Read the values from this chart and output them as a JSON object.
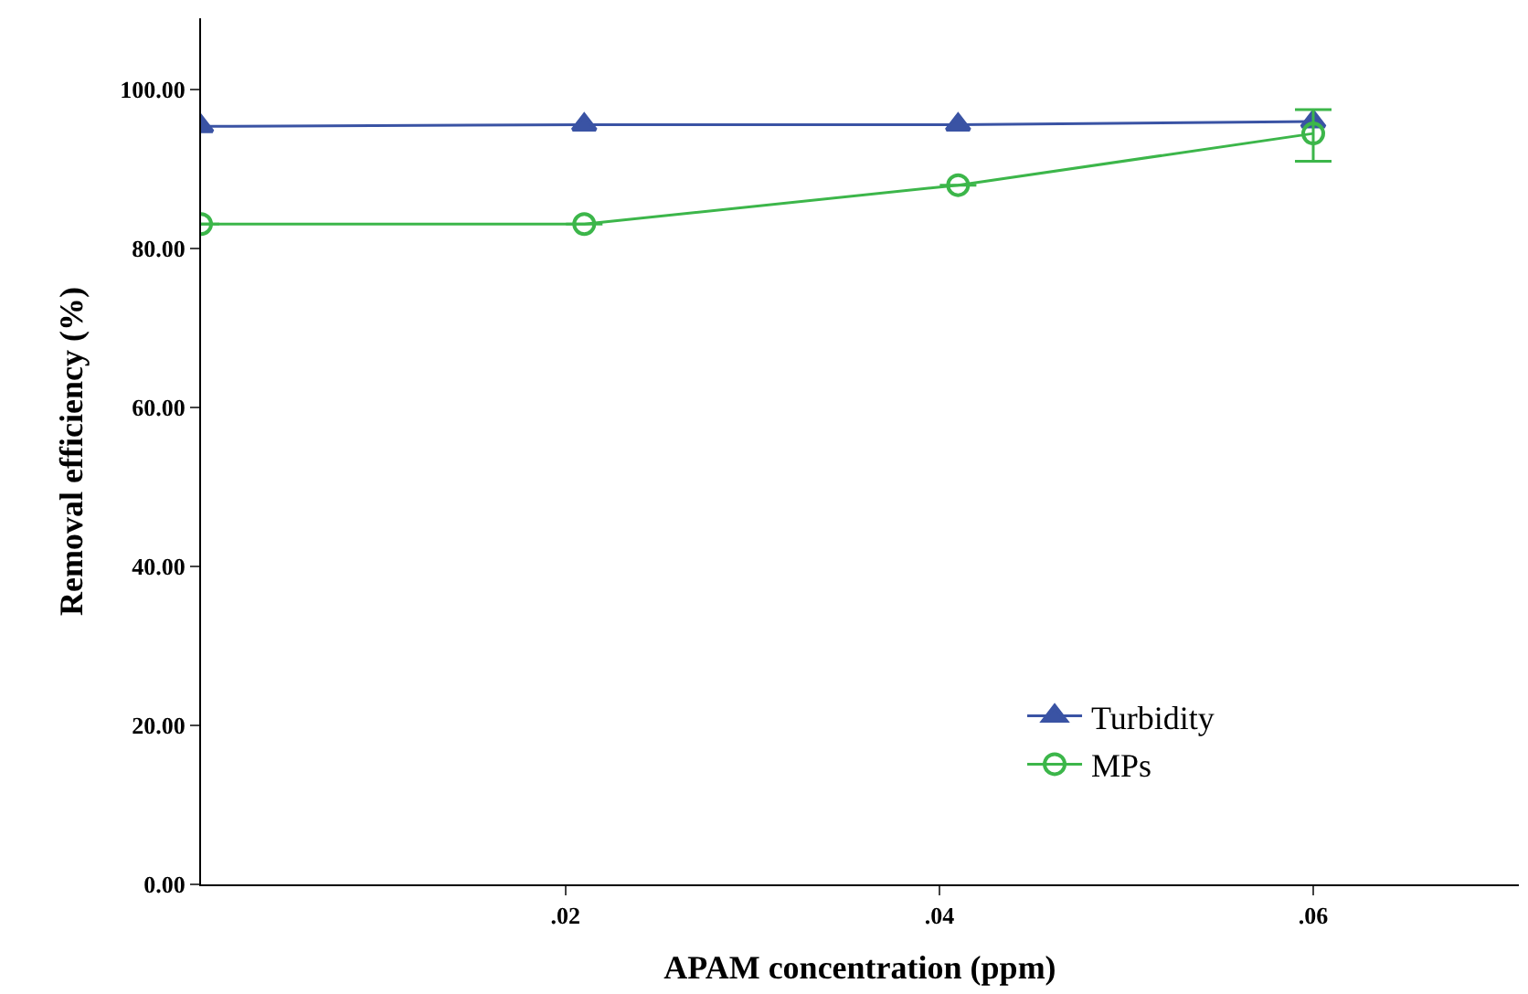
{
  "chart_data": {
    "type": "line",
    "xlabel": "APAM concentration (ppm)",
    "ylabel": "Removal efficiency (%)",
    "x": [
      0.0005,
      0.021,
      0.041,
      0.06
    ],
    "series": [
      {
        "name": "Turbidity",
        "color": "#3a53a4",
        "marker": "triangle",
        "values": [
          95.4,
          95.6,
          95.6,
          96
        ]
      },
      {
        "name": "MPs",
        "color": "#3cb64a",
        "marker": "circle",
        "values": [
          83.1,
          83.1,
          88,
          94.5
        ],
        "errors": [
          null,
          null,
          null,
          [
            91,
            97.5
          ]
        ]
      }
    ],
    "xlim": [
      0.0005,
      0.071
    ],
    "xticks": [
      {
        "value": 0.02,
        "label": ".02"
      },
      {
        "value": 0.04,
        "label": ".04"
      },
      {
        "value": 0.06,
        "label": ".06"
      }
    ],
    "ylim": [
      0,
      109
    ],
    "yticks": [
      {
        "value": 0,
        "label": "0.00"
      },
      {
        "value": 20,
        "label": "20.00"
      },
      {
        "value": 40,
        "label": "40.00"
      },
      {
        "value": 60,
        "label": "60.00"
      },
      {
        "value": 80,
        "label": "80.00"
      },
      {
        "value": 100,
        "label": "100.00"
      }
    ],
    "legend": "bottom right"
  }
}
